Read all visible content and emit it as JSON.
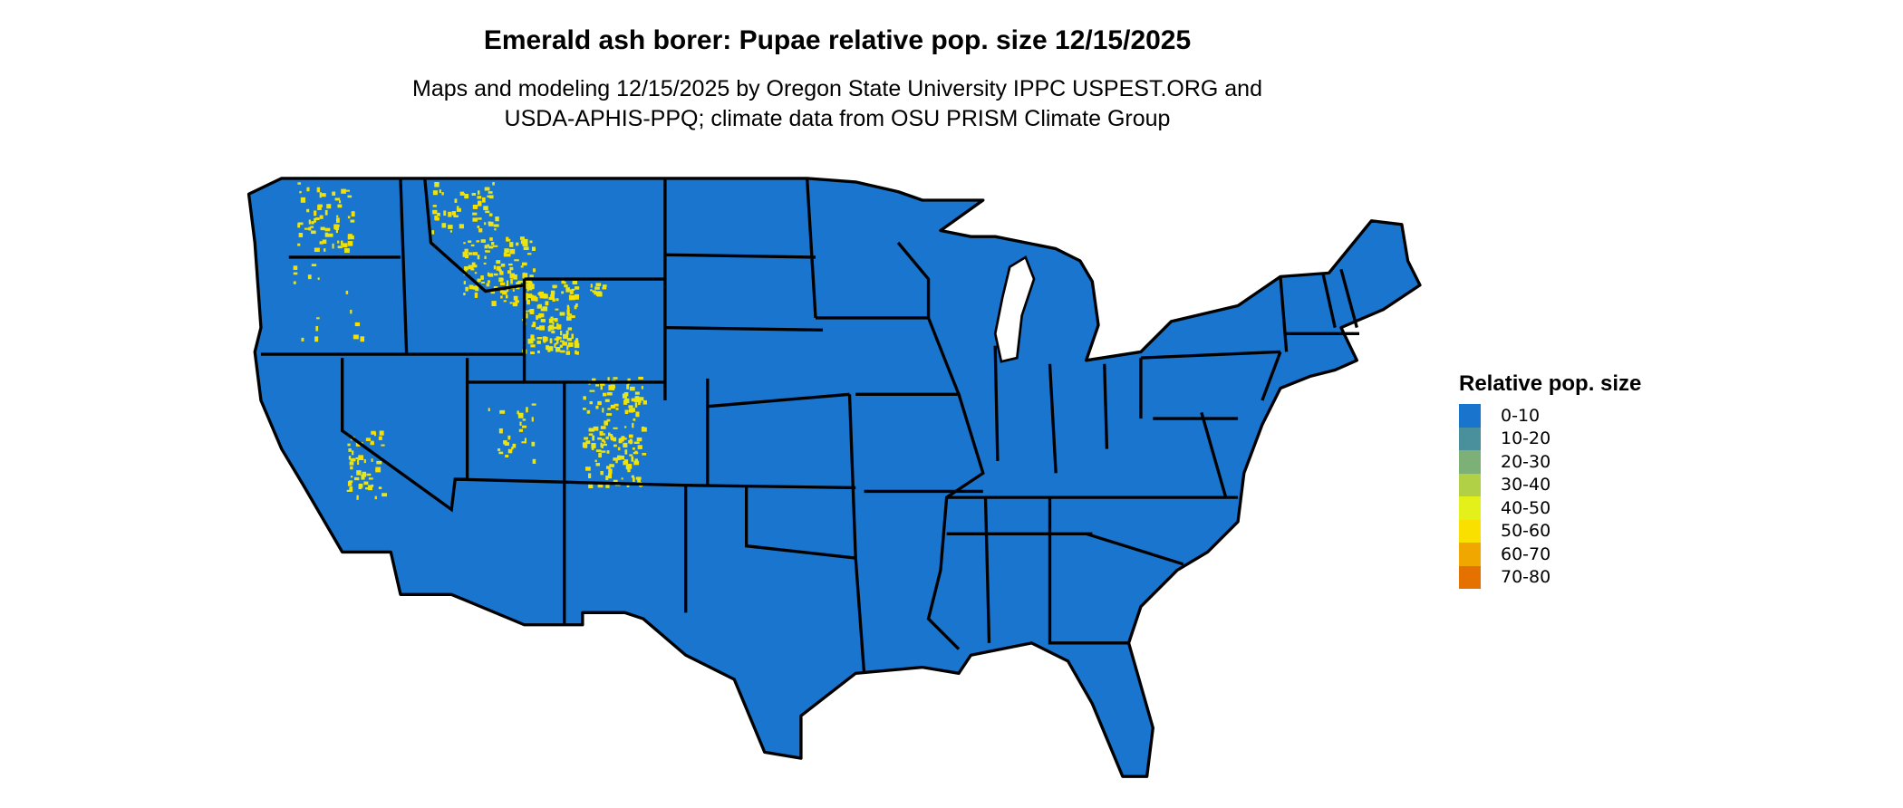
{
  "title": "Emerald ash borer: Pupae relative pop. size 12/15/2025",
  "subtitle_line1": "Maps and modeling 12/15/2025 by Oregon State University IPPC USPEST.ORG and",
  "subtitle_line2": "USDA-APHIS-PPQ; climate data from OSU PRISM Climate Group",
  "map": {
    "fill_color": "#1a75cf",
    "hotspot_color": "#e6e619",
    "hotspot_alt_color": "#f7e000",
    "border_color": "#000000"
  },
  "legend": {
    "title": "Relative pop. size",
    "items": [
      {
        "label": "0-10",
        "color": "#1874cd"
      },
      {
        "label": "10-20",
        "color": "#4a8f9c"
      },
      {
        "label": "20-30",
        "color": "#7db076"
      },
      {
        "label": "30-40",
        "color": "#b2d045"
      },
      {
        "label": "40-50",
        "color": "#e3f01a"
      },
      {
        "label": "50-60",
        "color": "#f9e000"
      },
      {
        "label": "60-70",
        "color": "#f0a800"
      },
      {
        "label": "70-80",
        "color": "#e57200"
      }
    ]
  }
}
